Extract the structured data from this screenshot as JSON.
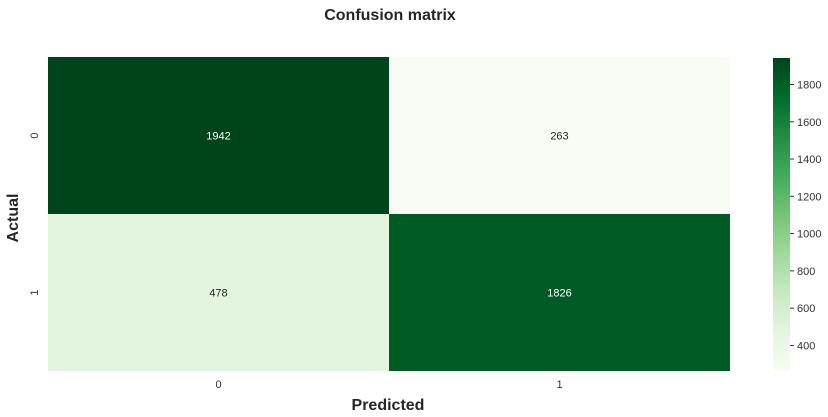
{
  "chart_data": {
    "type": "heatmap",
    "title": "Confusion matrix",
    "xlabel": "Predicted",
    "ylabel": "Actual",
    "x_categories": [
      "0",
      "1"
    ],
    "y_categories": [
      "0",
      "1"
    ],
    "values": [
      [
        1942,
        263
      ],
      [
        478,
        1826
      ]
    ],
    "colormap": "Greens",
    "colorbar": {
      "range": [
        263,
        1942
      ],
      "ticks": [
        400,
        600,
        800,
        1000,
        1200,
        1400,
        1600,
        1800
      ]
    },
    "colors": {
      "low": "#f7fcf5",
      "high": "#00441b",
      "text_dark": "#262626",
      "text_light": "#ffffff"
    }
  }
}
